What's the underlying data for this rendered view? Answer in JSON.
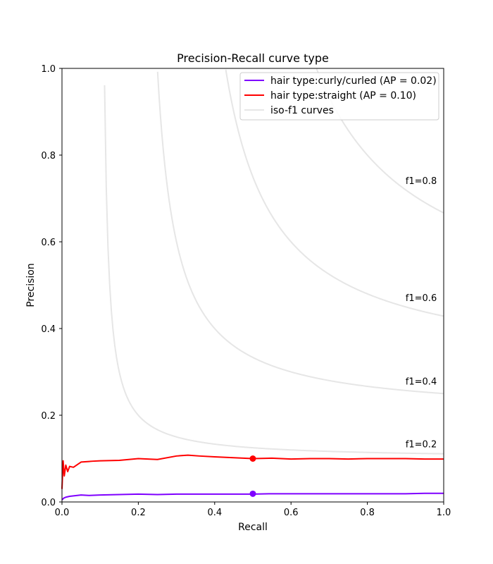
{
  "chart_data": {
    "type": "line",
    "title": "Precision-Recall curve type",
    "xlabel": "Recall",
    "ylabel": "Precision",
    "xlim": [
      0.0,
      1.0
    ],
    "ylim": [
      0.0,
      1.0
    ],
    "xticks": [
      "0.0",
      "0.2",
      "0.4",
      "0.6",
      "0.8",
      "1.0"
    ],
    "yticks": [
      "0.0",
      "0.2",
      "0.4",
      "0.6",
      "0.8",
      "1.0"
    ],
    "grid": false,
    "legend_position": "top-right",
    "iso_f1_curves": {
      "legend_label": "iso-f1 curves",
      "color": "#e6e6e6",
      "labels": [
        "f1=0.2",
        "f1=0.4",
        "f1=0.6",
        "f1=0.8"
      ],
      "f1_values": [
        0.2,
        0.4,
        0.6,
        0.8
      ]
    },
    "series": [
      {
        "name": "hair type:curly/curled (AP = 0.02)",
        "color": "#7f00ff",
        "x": [
          0.0,
          0.005,
          0.01,
          0.02,
          0.03,
          0.05,
          0.07,
          0.1,
          0.15,
          0.2,
          0.25,
          0.3,
          0.35,
          0.4,
          0.45,
          0.5,
          0.55,
          0.6,
          0.65,
          0.7,
          0.75,
          0.8,
          0.85,
          0.9,
          0.95,
          1.0
        ],
        "y": [
          0.005,
          0.009,
          0.011,
          0.013,
          0.014,
          0.016,
          0.015,
          0.016,
          0.017,
          0.018,
          0.017,
          0.018,
          0.018,
          0.018,
          0.018,
          0.018,
          0.019,
          0.019,
          0.019,
          0.019,
          0.019,
          0.019,
          0.019,
          0.019,
          0.02,
          0.02
        ],
        "marker": {
          "x": 0.5,
          "y": 0.019
        }
      },
      {
        "name": "hair type:straight (AP = 0.10)",
        "color": "#ff0000",
        "x": [
          0.0,
          0.003,
          0.006,
          0.01,
          0.015,
          0.02,
          0.03,
          0.05,
          0.08,
          0.1,
          0.15,
          0.2,
          0.25,
          0.3,
          0.33,
          0.36,
          0.4,
          0.45,
          0.5,
          0.55,
          0.6,
          0.65,
          0.7,
          0.75,
          0.8,
          0.85,
          0.9,
          0.95,
          1.0
        ],
        "y": [
          0.03,
          0.095,
          0.06,
          0.085,
          0.07,
          0.082,
          0.08,
          0.092,
          0.094,
          0.095,
          0.096,
          0.1,
          0.098,
          0.106,
          0.108,
          0.106,
          0.104,
          0.102,
          0.1,
          0.101,
          0.099,
          0.1,
          0.1,
          0.099,
          0.1,
          0.1,
          0.1,
          0.099,
          0.099
        ],
        "marker": {
          "x": 0.5,
          "y": 0.1
        }
      }
    ]
  }
}
